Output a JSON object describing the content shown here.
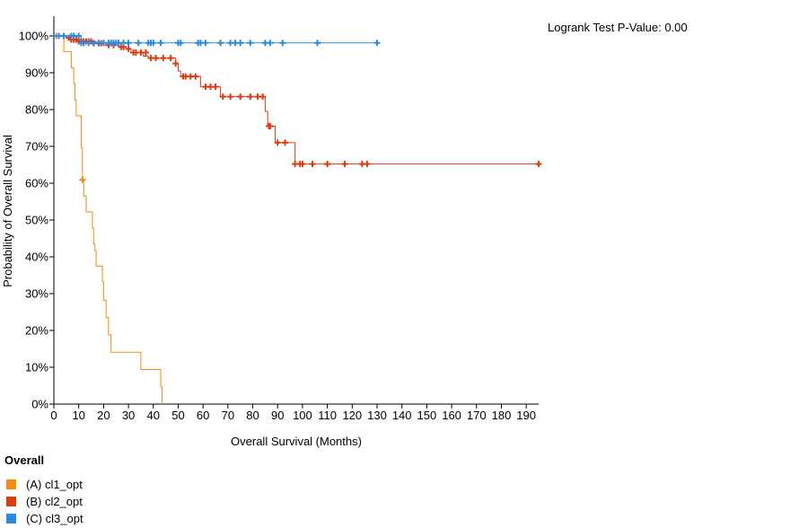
{
  "pvalue_text": "Logrank Test P-Value: 0.00",
  "legend": {
    "title": "Overall",
    "items": [
      {
        "label": "(A) cl1_opt",
        "color": "#f5890f"
      },
      {
        "label": "(B) cl2_opt",
        "color": "#dc3c12"
      },
      {
        "label": "(C) cl3_opt",
        "color": "#2c8be0"
      }
    ]
  },
  "chart_data": {
    "type": "line",
    "subtype": "kaplan-meier-step",
    "title": "",
    "xlabel": "Overall Survival (Months)",
    "ylabel": "Probability of Overall Survival",
    "xlim": [
      0,
      195
    ],
    "ylim": [
      0,
      1
    ],
    "xticks": [
      0,
      10,
      20,
      30,
      40,
      50,
      60,
      70,
      80,
      90,
      100,
      110,
      120,
      130,
      140,
      150,
      160,
      170,
      180,
      190
    ],
    "yticks": [
      0,
      0.1,
      0.2,
      0.3,
      0.4,
      0.5,
      0.6,
      0.7,
      0.8,
      0.9,
      1.0
    ],
    "ytick_labels": [
      "0%",
      "10%",
      "20%",
      "30%",
      "40%",
      "50%",
      "60%",
      "70%",
      "80%",
      "90%",
      "100%"
    ],
    "grid": false,
    "legend_position": "bottom-left",
    "series": [
      {
        "name": "(A) cl1_opt",
        "color": "#f5890f",
        "steps": [
          [
            0,
            1.0
          ],
          [
            4,
            0.957
          ],
          [
            7,
            0.913
          ],
          [
            8,
            0.87
          ],
          [
            8.5,
            0.826
          ],
          [
            9,
            0.783
          ],
          [
            11,
            0.696
          ],
          [
            11.5,
            0.609
          ],
          [
            12,
            0.565
          ],
          [
            13,
            0.522
          ],
          [
            15.5,
            0.478
          ],
          [
            16,
            0.435
          ],
          [
            16.5,
            0.417
          ],
          [
            17,
            0.375
          ],
          [
            19.5,
            0.333
          ],
          [
            20,
            0.282
          ],
          [
            21,
            0.235
          ],
          [
            22,
            0.188
          ],
          [
            23,
            0.141
          ],
          [
            35,
            0.094
          ],
          [
            43,
            0.047
          ],
          [
            43.5,
            0.0
          ]
        ],
        "censored": [
          [
            1,
            1.0
          ],
          [
            11.5,
            0.609
          ]
        ]
      },
      {
        "name": "(B) cl2_opt",
        "color": "#dc3c12",
        "steps": [
          [
            0,
            1.0
          ],
          [
            5,
            0.995
          ],
          [
            7,
            0.99
          ],
          [
            12,
            0.985
          ],
          [
            17,
            0.98
          ],
          [
            20,
            0.975
          ],
          [
            26,
            0.97
          ],
          [
            29,
            0.965
          ],
          [
            31,
            0.955
          ],
          [
            36,
            0.945
          ],
          [
            38,
            0.94
          ],
          [
            49,
            0.925
          ],
          [
            50,
            0.905
          ],
          [
            51,
            0.89
          ],
          [
            59,
            0.862
          ],
          [
            67,
            0.835
          ],
          [
            85,
            0.795
          ],
          [
            86,
            0.755
          ],
          [
            89,
            0.71
          ],
          [
            97,
            0.652
          ],
          [
            195,
            0.652
          ]
        ],
        "censored": [
          [
            6,
            0.995
          ],
          [
            7,
            0.99
          ],
          [
            8,
            0.99
          ],
          [
            9,
            0.99
          ],
          [
            10,
            0.985
          ],
          [
            11,
            0.985
          ],
          [
            12,
            0.985
          ],
          [
            13,
            0.985
          ],
          [
            14,
            0.985
          ],
          [
            15,
            0.985
          ],
          [
            16,
            0.98
          ],
          [
            18,
            0.98
          ],
          [
            19,
            0.98
          ],
          [
            22,
            0.975
          ],
          [
            24,
            0.975
          ],
          [
            27,
            0.97
          ],
          [
            28,
            0.97
          ],
          [
            30,
            0.965
          ],
          [
            32,
            0.955
          ],
          [
            33,
            0.955
          ],
          [
            35,
            0.955
          ],
          [
            37,
            0.955
          ],
          [
            39,
            0.94
          ],
          [
            41,
            0.94
          ],
          [
            44,
            0.94
          ],
          [
            47,
            0.94
          ],
          [
            49,
            0.925
          ],
          [
            52,
            0.89
          ],
          [
            53,
            0.89
          ],
          [
            55,
            0.89
          ],
          [
            57,
            0.89
          ],
          [
            61,
            0.862
          ],
          [
            63,
            0.862
          ],
          [
            65,
            0.862
          ],
          [
            68,
            0.835
          ],
          [
            71,
            0.835
          ],
          [
            75,
            0.835
          ],
          [
            79,
            0.835
          ],
          [
            82,
            0.835
          ],
          [
            84,
            0.835
          ],
          [
            86.5,
            0.755
          ],
          [
            87,
            0.755
          ],
          [
            90,
            0.71
          ],
          [
            93,
            0.71
          ],
          [
            97,
            0.652
          ],
          [
            99,
            0.652
          ],
          [
            100,
            0.652
          ],
          [
            104,
            0.652
          ],
          [
            110,
            0.652
          ],
          [
            117,
            0.652
          ],
          [
            124,
            0.652
          ],
          [
            126,
            0.652
          ],
          [
            195,
            0.652
          ]
        ]
      },
      {
        "name": "(C) cl3_opt",
        "color": "#2c8be0",
        "steps": [
          [
            0,
            1.0
          ],
          [
            11,
            0.981
          ],
          [
            130,
            0.981
          ]
        ],
        "censored": [
          [
            0,
            1.0
          ],
          [
            2,
            1.0
          ],
          [
            4,
            1.0
          ],
          [
            7,
            1.0
          ],
          [
            8,
            1.0
          ],
          [
            10,
            1.0
          ],
          [
            11,
            0.981
          ],
          [
            12,
            0.981
          ],
          [
            14,
            0.981
          ],
          [
            16,
            0.981
          ],
          [
            18,
            0.981
          ],
          [
            20,
            0.981
          ],
          [
            22,
            0.981
          ],
          [
            23,
            0.981
          ],
          [
            24,
            0.981
          ],
          [
            25,
            0.981
          ],
          [
            26,
            0.981
          ],
          [
            28,
            0.981
          ],
          [
            30,
            0.981
          ],
          [
            34,
            0.981
          ],
          [
            38,
            0.981
          ],
          [
            39,
            0.981
          ],
          [
            40,
            0.981
          ],
          [
            43,
            0.981
          ],
          [
            50,
            0.981
          ],
          [
            51,
            0.981
          ],
          [
            58,
            0.981
          ],
          [
            59,
            0.981
          ],
          [
            61,
            0.981
          ],
          [
            67,
            0.981
          ],
          [
            71,
            0.981
          ],
          [
            73,
            0.981
          ],
          [
            75,
            0.981
          ],
          [
            79,
            0.981
          ],
          [
            85,
            0.981
          ],
          [
            87,
            0.981
          ],
          [
            92,
            0.981
          ],
          [
            106,
            0.981
          ],
          [
            130,
            0.981
          ]
        ]
      }
    ]
  }
}
